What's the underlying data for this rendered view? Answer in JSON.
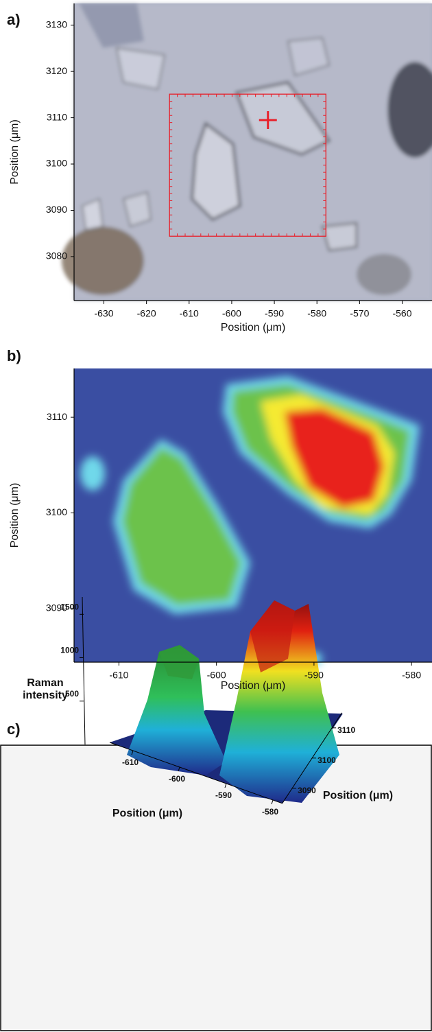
{
  "chart_data": [
    {
      "type": "micrograph",
      "panel": "a)",
      "xlabel": "Position (μm)",
      "ylabel": "Position (μm)",
      "xlim": [
        -637,
        -553
      ],
      "ylim": [
        3070.5,
        3134.7
      ],
      "xticks": [
        -630,
        -620,
        -610,
        -600,
        -590,
        -580,
        -570,
        -560
      ],
      "yticks": [
        3080,
        3090,
        3100,
        3110,
        3120,
        3130
      ],
      "selection_color": "#e8202a",
      "crosshair": [
        -591.5,
        3109.5
      ]
    },
    {
      "type": "heatmap",
      "panel": "b)",
      "xlabel": "Position (μm)",
      "ylabel": "Position (μm)",
      "xlim": [
        -614.6,
        -577.9
      ],
      "ylim": [
        3084.4,
        3115.1
      ],
      "xticks": [
        -610,
        -600,
        -590,
        -580
      ],
      "yticks": [
        3090,
        3100,
        3110
      ]
    },
    {
      "type": "surface3d",
      "panel": "c)",
      "xlabel": "Position (μm)",
      "ylabel": "Position (μm)",
      "zlabel": "Raman intensity",
      "xlim": [
        -615,
        -578
      ],
      "ylim": [
        3085,
        3115
      ],
      "zlim": [
        0,
        1700
      ],
      "xticks": [
        -610,
        -600,
        -590,
        -580
      ],
      "yticks": [
        3090,
        3100,
        3110
      ],
      "zticks": [
        500,
        1000,
        1500
      ]
    }
  ]
}
